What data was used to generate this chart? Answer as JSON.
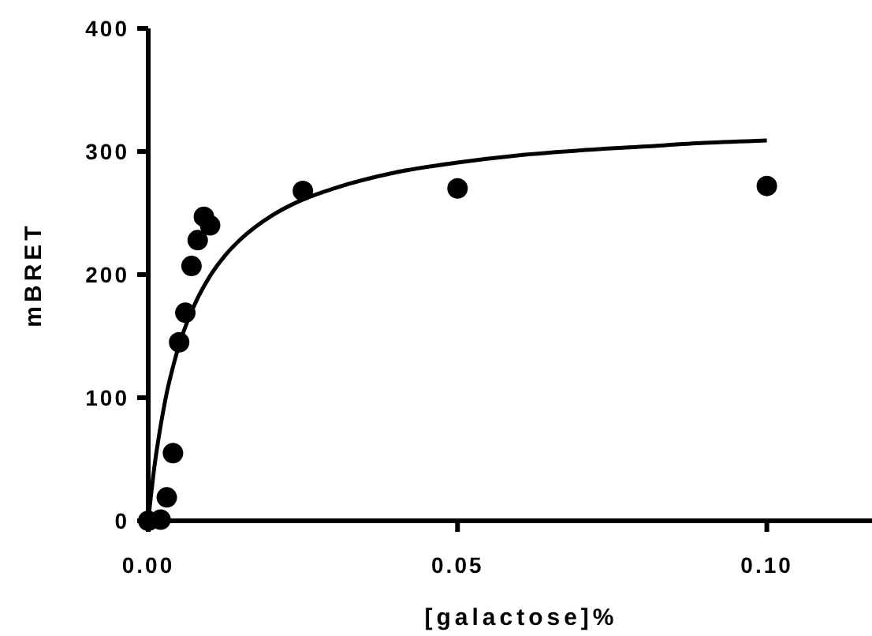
{
  "chart_data": {
    "type": "scatter",
    "xlabel": "[galactose]%",
    "ylabel": "mBRET",
    "xlim": [
      0,
      0.117
    ],
    "ylim": [
      0,
      400
    ],
    "xticks": [
      {
        "value": 0,
        "label": "0.00"
      },
      {
        "value": 0.05,
        "label": "0.05"
      },
      {
        "value": 0.1,
        "label": "0.10"
      }
    ],
    "yticks": [
      0,
      100,
      200,
      300,
      400
    ],
    "grid": false,
    "series": [
      {
        "color": "#000000",
        "marker": "circle",
        "x": [
          0,
          0.002,
          0.003,
          0.004,
          0.005,
          0.006,
          0.007,
          0.008,
          0.009,
          0.01,
          0.025,
          0.05,
          0.1
        ],
        "values": [
          0,
          1,
          19,
          55,
          145,
          169,
          207,
          228,
          247,
          240,
          268,
          270,
          272
        ]
      },
      {
        "type": "line",
        "color": "#000000",
        "marker": "none",
        "line_style": "solid",
        "x": [
          0,
          0.001,
          0.002,
          0.003,
          0.004,
          0.005,
          0.0065,
          0.008,
          0.01,
          0.0125,
          0.015,
          0.02,
          0.025,
          0.03,
          0.04,
          0.05,
          0.06,
          0.07,
          0.08,
          0.09,
          0.1
        ],
        "values": [
          0,
          44,
          77,
          104,
          125,
          143,
          164,
          181,
          199,
          216,
          229,
          248,
          261,
          270,
          283,
          291,
          297,
          301,
          304,
          307,
          309
        ]
      }
    ]
  }
}
